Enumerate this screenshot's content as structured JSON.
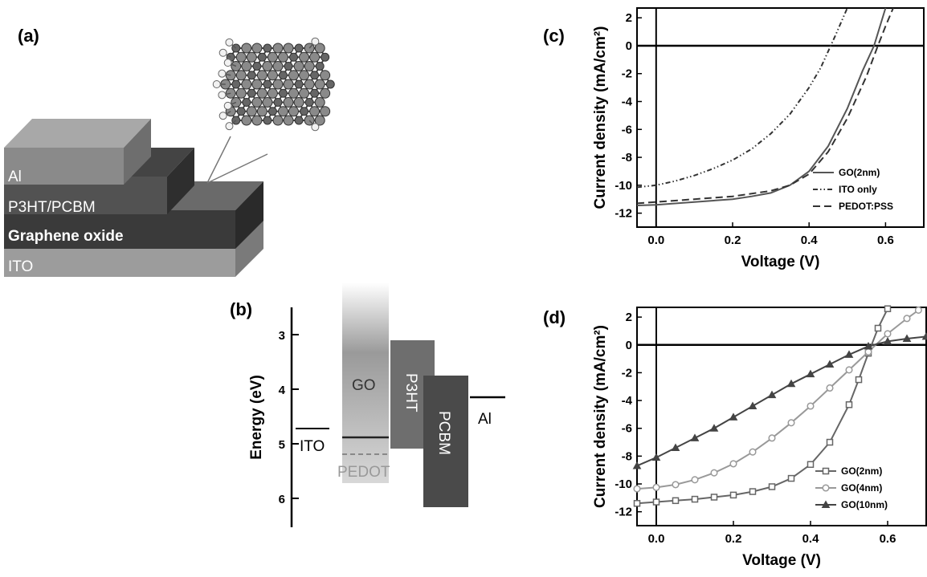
{
  "panel_a": {
    "label": "(a)",
    "layers": [
      "Al",
      "P3HT/PCBM",
      "Graphene oxide",
      "ITO"
    ]
  },
  "panel_b": {
    "label": "(b)",
    "y_label": "Energy (eV)",
    "y_ticks": [
      "3",
      "4",
      "5",
      "6"
    ],
    "labels": {
      "ito": "ITO",
      "go": "GO",
      "pedot": "PEDOT",
      "p3ht": "P3HT",
      "pcbm": "PCBM",
      "al": "Al"
    }
  },
  "chart_data": [
    {
      "panel": "(c)",
      "type": "line",
      "xlabel": "Voltage (V)",
      "ylabel": "Current density (mA/cm²)",
      "xlim": [
        -0.05,
        0.7
      ],
      "ylim": [
        -13,
        2.7
      ],
      "x_ticks": [
        0.0,
        0.2,
        0.4,
        0.6
      ],
      "x_tick_labels": [
        "0.0",
        "0.2",
        "0.4",
        "0.6"
      ],
      "y_ticks": [
        2,
        0,
        -2,
        -4,
        -6,
        -8,
        -10,
        -12
      ],
      "y_tick_labels": [
        "2",
        "0",
        "-2",
        "-4",
        "-6",
        "-8",
        "-10",
        "-12"
      ],
      "legend_position": "bottom-right",
      "series": [
        {
          "name": "GO(2nm)",
          "style": "solid",
          "color": "#555555",
          "x": [
            -0.05,
            0.0,
            0.1,
            0.2,
            0.25,
            0.3,
            0.35,
            0.4,
            0.45,
            0.5,
            0.54,
            0.57,
            0.6
          ],
          "y": [
            -11.45,
            -11.4,
            -11.2,
            -11.0,
            -10.8,
            -10.55,
            -10.0,
            -9.0,
            -7.2,
            -4.5,
            -1.8,
            0.0,
            2.7
          ]
        },
        {
          "name": "ITO only",
          "style": "dash-dot-dot",
          "color": "#333333",
          "x": [
            -0.05,
            0.0,
            0.05,
            0.1,
            0.15,
            0.2,
            0.25,
            0.3,
            0.35,
            0.4,
            0.43,
            0.45,
            0.47,
            0.5
          ],
          "y": [
            -10.15,
            -10.0,
            -9.7,
            -9.3,
            -8.8,
            -8.2,
            -7.4,
            -6.3,
            -4.9,
            -3.0,
            -1.6,
            -0.4,
            0.8,
            2.7
          ]
        },
        {
          "name": "PEDOT:PSS",
          "style": "dashed",
          "color": "#333333",
          "x": [
            -0.05,
            0.0,
            0.1,
            0.2,
            0.3,
            0.35,
            0.4,
            0.45,
            0.5,
            0.55,
            0.58,
            0.6,
            0.62
          ],
          "y": [
            -11.3,
            -11.2,
            -11.0,
            -10.8,
            -10.4,
            -10.0,
            -9.2,
            -7.6,
            -5.2,
            -2.2,
            0.0,
            1.4,
            2.7
          ]
        }
      ]
    },
    {
      "panel": "(d)",
      "type": "line",
      "xlabel": "Voltage (V)",
      "ylabel": "Current density (mA/cm²)",
      "xlim": [
        -0.05,
        0.7
      ],
      "ylim": [
        -13,
        2.7
      ],
      "x_ticks": [
        0.0,
        0.2,
        0.4,
        0.6
      ],
      "x_tick_labels": [
        "0.0",
        "0.2",
        "0.4",
        "0.6"
      ],
      "y_ticks": [
        2,
        0,
        -2,
        -4,
        -6,
        -8,
        -10,
        -12
      ],
      "y_tick_labels": [
        "2",
        "0",
        "-2",
        "-4",
        "-6",
        "-8",
        "-10",
        "-12"
      ],
      "legend_position": "bottom-right",
      "series": [
        {
          "name": "GO(2nm)",
          "marker": "square",
          "color": "#666666",
          "x": [
            -0.05,
            0.0,
            0.05,
            0.1,
            0.15,
            0.2,
            0.25,
            0.3,
            0.35,
            0.4,
            0.45,
            0.5,
            0.525,
            0.55,
            0.575,
            0.6
          ],
          "y": [
            -11.4,
            -11.3,
            -11.2,
            -11.1,
            -10.95,
            -10.8,
            -10.55,
            -10.2,
            -9.6,
            -8.6,
            -7.0,
            -4.3,
            -2.5,
            -0.6,
            1.2,
            2.6
          ]
        },
        {
          "name": "GO(4nm)",
          "marker": "circle",
          "color": "#999999",
          "x": [
            -0.05,
            0.0,
            0.05,
            0.1,
            0.15,
            0.2,
            0.25,
            0.3,
            0.35,
            0.4,
            0.45,
            0.5,
            0.55,
            0.6,
            0.65,
            0.68
          ],
          "y": [
            -10.35,
            -10.25,
            -10.05,
            -9.7,
            -9.2,
            -8.55,
            -7.7,
            -6.7,
            -5.6,
            -4.4,
            -3.1,
            -1.8,
            -0.5,
            0.8,
            1.9,
            2.5
          ]
        },
        {
          "name": "GO(10nm)",
          "marker": "triangle",
          "color": "#444444",
          "x": [
            -0.05,
            0.0,
            0.05,
            0.1,
            0.15,
            0.2,
            0.25,
            0.3,
            0.35,
            0.4,
            0.45,
            0.5,
            0.55,
            0.6,
            0.65,
            0.7
          ],
          "y": [
            -8.7,
            -8.1,
            -7.4,
            -6.7,
            -6.0,
            -5.2,
            -4.4,
            -3.6,
            -2.8,
            -2.1,
            -1.4,
            -0.7,
            -0.1,
            0.25,
            0.45,
            0.6
          ]
        }
      ]
    }
  ]
}
